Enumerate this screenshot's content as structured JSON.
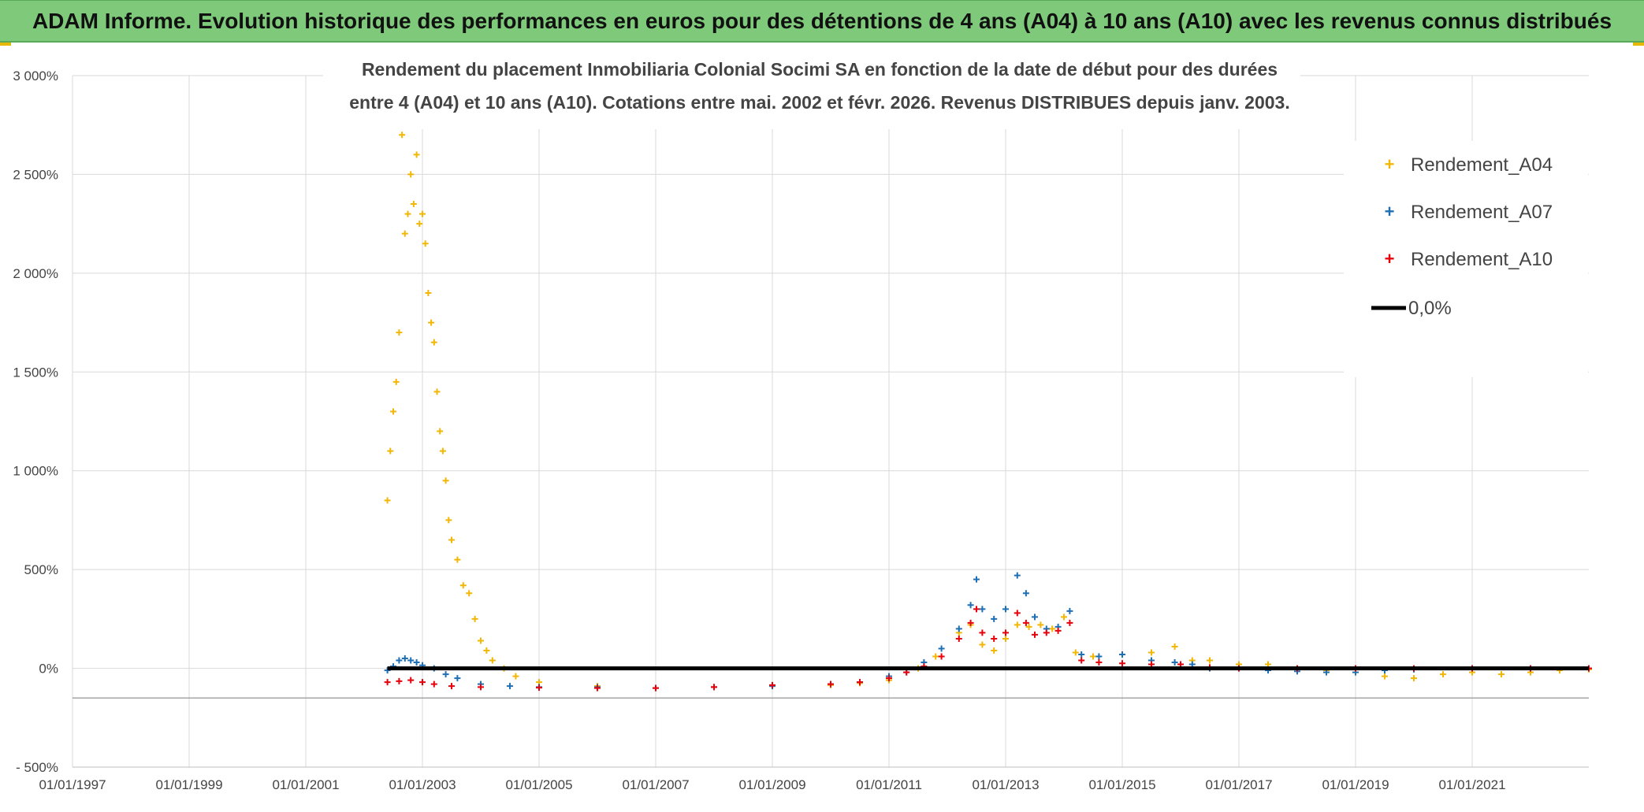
{
  "header": {
    "title": "ADAM Informe. Evolution historique des performances en euros pour des détentions de 4 ans (A04) à 10 ans (A10) avec les revenus connus distribués"
  },
  "colors": {
    "header_bg": "#7ec97a",
    "a04": "#f2b705",
    "a07": "#1f6fb5",
    "a10": "#e8000b",
    "zero": "#000000",
    "grid": "#d9d9d9"
  },
  "chart_data": {
    "type": "scatter",
    "title_lines": [
      "Rendement du placement Inmobiliaria Colonial Socimi SA en fonction de la date de début pour des durées",
      "entre 4 (A04) et 10 ans (A10). Cotations entre mai. 2002 et févr. 2026. Revenus DISTRIBUES depuis janv. 2003."
    ],
    "xlabel": "",
    "ylabel": "",
    "xlim": [
      1997.0,
      2023.0
    ],
    "ylim": [
      -500,
      3000
    ],
    "x_ticks": [
      {
        "value": 1997.0,
        "label": "01/01/1997"
      },
      {
        "value": 1999.0,
        "label": "01/01/1999"
      },
      {
        "value": 2001.0,
        "label": "01/01/2001"
      },
      {
        "value": 2003.0,
        "label": "01/01/2003"
      },
      {
        "value": 2005.0,
        "label": "01/01/2005"
      },
      {
        "value": 2007.0,
        "label": "01/01/2007"
      },
      {
        "value": 2009.0,
        "label": "01/01/2009"
      },
      {
        "value": 2011.0,
        "label": "01/01/2011"
      },
      {
        "value": 2013.0,
        "label": "01/01/2013"
      },
      {
        "value": 2015.0,
        "label": "01/01/2015"
      },
      {
        "value": 2017.0,
        "label": "01/01/2017"
      },
      {
        "value": 2019.0,
        "label": "01/01/2019"
      },
      {
        "value": 2021.0,
        "label": "01/01/2021"
      }
    ],
    "y_ticks": [
      {
        "value": 3000,
        "label": "3 000%"
      },
      {
        "value": 2500,
        "label": "2 500%"
      },
      {
        "value": 2000,
        "label": "2 000%"
      },
      {
        "value": 1500,
        "label": "1 500%"
      },
      {
        "value": 1000,
        "label": "1 000%"
      },
      {
        "value": 500,
        "label": "500%"
      },
      {
        "value": 0,
        "label": "0%"
      },
      {
        "value": -500,
        "label": "- 500%"
      }
    ],
    "legend_position": "top-right",
    "series": [
      {
        "name": "Rendement_A04",
        "marker": "+",
        "color": "#f2b705",
        "points": [
          [
            2002.4,
            850
          ],
          [
            2002.45,
            1100
          ],
          [
            2002.5,
            1300
          ],
          [
            2002.55,
            1450
          ],
          [
            2002.6,
            1700
          ],
          [
            2002.65,
            2700
          ],
          [
            2002.7,
            2200
          ],
          [
            2002.75,
            2300
          ],
          [
            2002.8,
            2500
          ],
          [
            2002.85,
            2350
          ],
          [
            2002.9,
            2600
          ],
          [
            2002.95,
            2250
          ],
          [
            2003.0,
            2300
          ],
          [
            2003.05,
            2150
          ],
          [
            2003.1,
            1900
          ],
          [
            2003.15,
            1750
          ],
          [
            2003.2,
            1650
          ],
          [
            2003.25,
            1400
          ],
          [
            2003.3,
            1200
          ],
          [
            2003.35,
            1100
          ],
          [
            2003.4,
            950
          ],
          [
            2003.45,
            750
          ],
          [
            2003.5,
            650
          ],
          [
            2003.6,
            550
          ],
          [
            2003.7,
            420
          ],
          [
            2003.8,
            380
          ],
          [
            2003.9,
            250
          ],
          [
            2004.0,
            140
          ],
          [
            2004.1,
            90
          ],
          [
            2004.2,
            40
          ],
          [
            2004.4,
            0
          ],
          [
            2004.6,
            -40
          ],
          [
            2005.0,
            -70
          ],
          [
            2006.0,
            -90
          ],
          [
            2007.0,
            -100
          ],
          [
            2008.0,
            -95
          ],
          [
            2009.0,
            -90
          ],
          [
            2010.0,
            -85
          ],
          [
            2010.5,
            -75
          ],
          [
            2011.0,
            -60
          ],
          [
            2011.5,
            0
          ],
          [
            2011.8,
            60
          ],
          [
            2012.2,
            180
          ],
          [
            2012.4,
            220
          ],
          [
            2012.6,
            120
          ],
          [
            2012.8,
            90
          ],
          [
            2013.0,
            150
          ],
          [
            2013.2,
            220
          ],
          [
            2013.4,
            210
          ],
          [
            2013.6,
            220
          ],
          [
            2013.8,
            200
          ],
          [
            2014.0,
            260
          ],
          [
            2014.2,
            80
          ],
          [
            2014.5,
            60
          ],
          [
            2015.0,
            70
          ],
          [
            2015.5,
            80
          ],
          [
            2015.9,
            110
          ],
          [
            2016.2,
            40
          ],
          [
            2016.5,
            40
          ],
          [
            2017.0,
            20
          ],
          [
            2017.5,
            20
          ],
          [
            2018.0,
            0
          ],
          [
            2018.5,
            -10
          ],
          [
            2019.0,
            -20
          ],
          [
            2019.5,
            -40
          ],
          [
            2020.0,
            -50
          ],
          [
            2020.5,
            -30
          ],
          [
            2021.0,
            -20
          ],
          [
            2021.5,
            -30
          ],
          [
            2022.0,
            -20
          ],
          [
            2022.5,
            -10
          ],
          [
            2023.0,
            -5
          ]
        ]
      },
      {
        "name": "Rendement_A07",
        "marker": "+",
        "color": "#1f6fb5",
        "points": [
          [
            2002.4,
            -10
          ],
          [
            2002.5,
            10
          ],
          [
            2002.6,
            40
          ],
          [
            2002.7,
            50
          ],
          [
            2002.8,
            40
          ],
          [
            2002.9,
            30
          ],
          [
            2003.0,
            15
          ],
          [
            2003.2,
            0
          ],
          [
            2003.4,
            -30
          ],
          [
            2003.6,
            -50
          ],
          [
            2004.0,
            -80
          ],
          [
            2004.5,
            -90
          ],
          [
            2005.0,
            -95
          ],
          [
            2006.0,
            -95
          ],
          [
            2007.0,
            -100
          ],
          [
            2008.0,
            -95
          ],
          [
            2009.0,
            -90
          ],
          [
            2010.0,
            -80
          ],
          [
            2010.5,
            -70
          ],
          [
            2011.0,
            -40
          ],
          [
            2011.3,
            -20
          ],
          [
            2011.6,
            30
          ],
          [
            2011.9,
            100
          ],
          [
            2012.2,
            200
          ],
          [
            2012.4,
            320
          ],
          [
            2012.5,
            450
          ],
          [
            2012.6,
            300
          ],
          [
            2012.8,
            250
          ],
          [
            2013.0,
            300
          ],
          [
            2013.2,
            470
          ],
          [
            2013.35,
            380
          ],
          [
            2013.5,
            260
          ],
          [
            2013.7,
            200
          ],
          [
            2013.9,
            210
          ],
          [
            2014.1,
            290
          ],
          [
            2014.3,
            70
          ],
          [
            2014.6,
            60
          ],
          [
            2015.0,
            70
          ],
          [
            2015.5,
            40
          ],
          [
            2015.9,
            30
          ],
          [
            2016.2,
            20
          ],
          [
            2016.5,
            0
          ],
          [
            2017.0,
            0
          ],
          [
            2017.5,
            -10
          ],
          [
            2018.0,
            -15
          ],
          [
            2018.5,
            -20
          ],
          [
            2019.0,
            -20
          ],
          [
            2019.5,
            -10
          ],
          [
            2020.0,
            -5
          ],
          [
            2021.0,
            0
          ],
          [
            2022.0,
            0
          ],
          [
            2023.0,
            0
          ]
        ]
      },
      {
        "name": "Rendement_A10",
        "marker": "+",
        "color": "#e8000b",
        "points": [
          [
            2002.4,
            -70
          ],
          [
            2002.6,
            -65
          ],
          [
            2002.8,
            -60
          ],
          [
            2003.0,
            -70
          ],
          [
            2003.2,
            -80
          ],
          [
            2003.5,
            -90
          ],
          [
            2004.0,
            -95
          ],
          [
            2005.0,
            -98
          ],
          [
            2006.0,
            -100
          ],
          [
            2007.0,
            -100
          ],
          [
            2008.0,
            -95
          ],
          [
            2009.0,
            -85
          ],
          [
            2010.0,
            -80
          ],
          [
            2010.5,
            -70
          ],
          [
            2011.0,
            -50
          ],
          [
            2011.3,
            -20
          ],
          [
            2011.6,
            10
          ],
          [
            2011.9,
            60
          ],
          [
            2012.2,
            150
          ],
          [
            2012.4,
            230
          ],
          [
            2012.5,
            300
          ],
          [
            2012.6,
            180
          ],
          [
            2012.8,
            150
          ],
          [
            2013.0,
            180
          ],
          [
            2013.2,
            280
          ],
          [
            2013.35,
            230
          ],
          [
            2013.5,
            170
          ],
          [
            2013.7,
            180
          ],
          [
            2013.9,
            190
          ],
          [
            2014.1,
            230
          ],
          [
            2014.3,
            40
          ],
          [
            2014.6,
            30
          ],
          [
            2015.0,
            25
          ],
          [
            2015.5,
            20
          ],
          [
            2016.0,
            20
          ],
          [
            2016.5,
            5
          ],
          [
            2017.0,
            0
          ],
          [
            2018.0,
            0
          ],
          [
            2019.0,
            0
          ],
          [
            2020.0,
            0
          ],
          [
            2021.0,
            0
          ],
          [
            2022.0,
            0
          ],
          [
            2023.0,
            0
          ]
        ]
      }
    ],
    "zero_line": {
      "name": "0,0%",
      "x_start": 2002.4,
      "x_end": 2023.0,
      "y": 0
    }
  }
}
